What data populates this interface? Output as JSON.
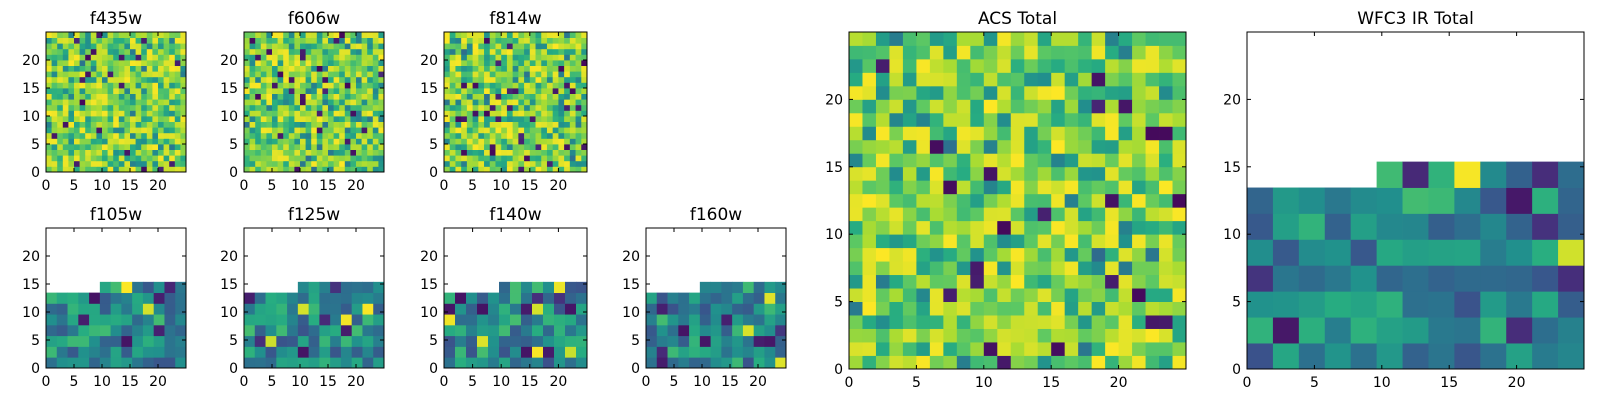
{
  "chart_data": [
    {
      "type": "heatmap",
      "title": "f435w",
      "xlabel": "",
      "ylabel": "",
      "xlim": [
        0,
        25
      ],
      "ylim": [
        0,
        25
      ],
      "grid_size": 25,
      "valid_rows": 25,
      "valid_cols": 25,
      "xticks": [
        0,
        5,
        10,
        15,
        20
      ],
      "yticks": [
        0,
        5,
        10,
        15,
        20
      ],
      "colormap": "viridis",
      "seed": 435
    },
    {
      "type": "heatmap",
      "title": "f606w",
      "xlabel": "",
      "ylabel": "",
      "xlim": [
        0,
        25
      ],
      "ylim": [
        0,
        25
      ],
      "grid_size": 25,
      "valid_rows": 25,
      "valid_cols": 25,
      "xticks": [
        0,
        5,
        10,
        15,
        20
      ],
      "yticks": [
        0,
        5,
        10,
        15,
        20
      ],
      "colormap": "viridis",
      "seed": 606
    },
    {
      "type": "heatmap",
      "title": "f814w",
      "xlabel": "",
      "ylabel": "",
      "xlim": [
        0,
        25
      ],
      "ylim": [
        0,
        25
      ],
      "grid_size": 25,
      "valid_rows": 25,
      "valid_cols": 25,
      "xticks": [
        0,
        5,
        10,
        15,
        20
      ],
      "yticks": [
        0,
        5,
        10,
        15,
        20
      ],
      "colormap": "viridis",
      "seed": 814
    },
    {
      "type": "heatmap",
      "title": "f105w",
      "xlabel": "",
      "ylabel": "",
      "xlim": [
        0,
        25
      ],
      "ylim": [
        0,
        25
      ],
      "grid_size": 13,
      "valid_rows": 8,
      "valid_cols": 13,
      "top_cols_start": 5,
      "xticks": [
        0,
        5,
        10,
        15,
        20
      ],
      "yticks": [
        0,
        5,
        10,
        15,
        20
      ],
      "colormap": "viridis",
      "seed": 105
    },
    {
      "type": "heatmap",
      "title": "f125w",
      "xlabel": "",
      "ylabel": "",
      "xlim": [
        0,
        25
      ],
      "ylim": [
        0,
        25
      ],
      "grid_size": 13,
      "valid_rows": 8,
      "valid_cols": 13,
      "top_cols_start": 5,
      "xticks": [
        0,
        5,
        10,
        15,
        20
      ],
      "yticks": [
        0,
        5,
        10,
        15,
        20
      ],
      "colormap": "viridis",
      "seed": 125
    },
    {
      "type": "heatmap",
      "title": "f140w",
      "xlabel": "",
      "ylabel": "",
      "xlim": [
        0,
        25
      ],
      "ylim": [
        0,
        25
      ],
      "grid_size": 13,
      "valid_rows": 8,
      "valid_cols": 13,
      "top_cols_start": 5,
      "xticks": [
        0,
        5,
        10,
        15,
        20
      ],
      "yticks": [
        0,
        5,
        10,
        15,
        20
      ],
      "colormap": "viridis",
      "seed": 140
    },
    {
      "type": "heatmap",
      "title": "f160w",
      "xlabel": "",
      "ylabel": "",
      "xlim": [
        0,
        25
      ],
      "ylim": [
        0,
        25
      ],
      "grid_size": 13,
      "valid_rows": 8,
      "valid_cols": 13,
      "top_cols_start": 5,
      "xticks": [
        0,
        5,
        10,
        15,
        20
      ],
      "yticks": [
        0,
        5,
        10,
        15,
        20
      ],
      "colormap": "viridis",
      "seed": 160
    },
    {
      "type": "heatmap",
      "title": "ACS Total",
      "xlabel": "",
      "ylabel": "",
      "xlim": [
        0,
        25
      ],
      "ylim": [
        0,
        25
      ],
      "grid_size": 25,
      "valid_rows": 25,
      "valid_cols": 25,
      "xticks": [
        0,
        5,
        10,
        15,
        20
      ],
      "yticks": [
        0,
        5,
        10,
        15,
        20
      ],
      "colormap": "viridis",
      "seed": 1001
    },
    {
      "type": "heatmap",
      "title": "WFC3 IR Total",
      "xlabel": "",
      "ylabel": "",
      "xlim": [
        0,
        25
      ],
      "ylim": [
        0,
        25
      ],
      "grid_size": 13,
      "valid_rows": 8,
      "valid_cols": 13,
      "top_cols_start": 5,
      "xticks": [
        0,
        5,
        10,
        15,
        20
      ],
      "yticks": [
        0,
        5,
        10,
        15,
        20
      ],
      "colormap": "viridis",
      "seed": 2002
    }
  ]
}
